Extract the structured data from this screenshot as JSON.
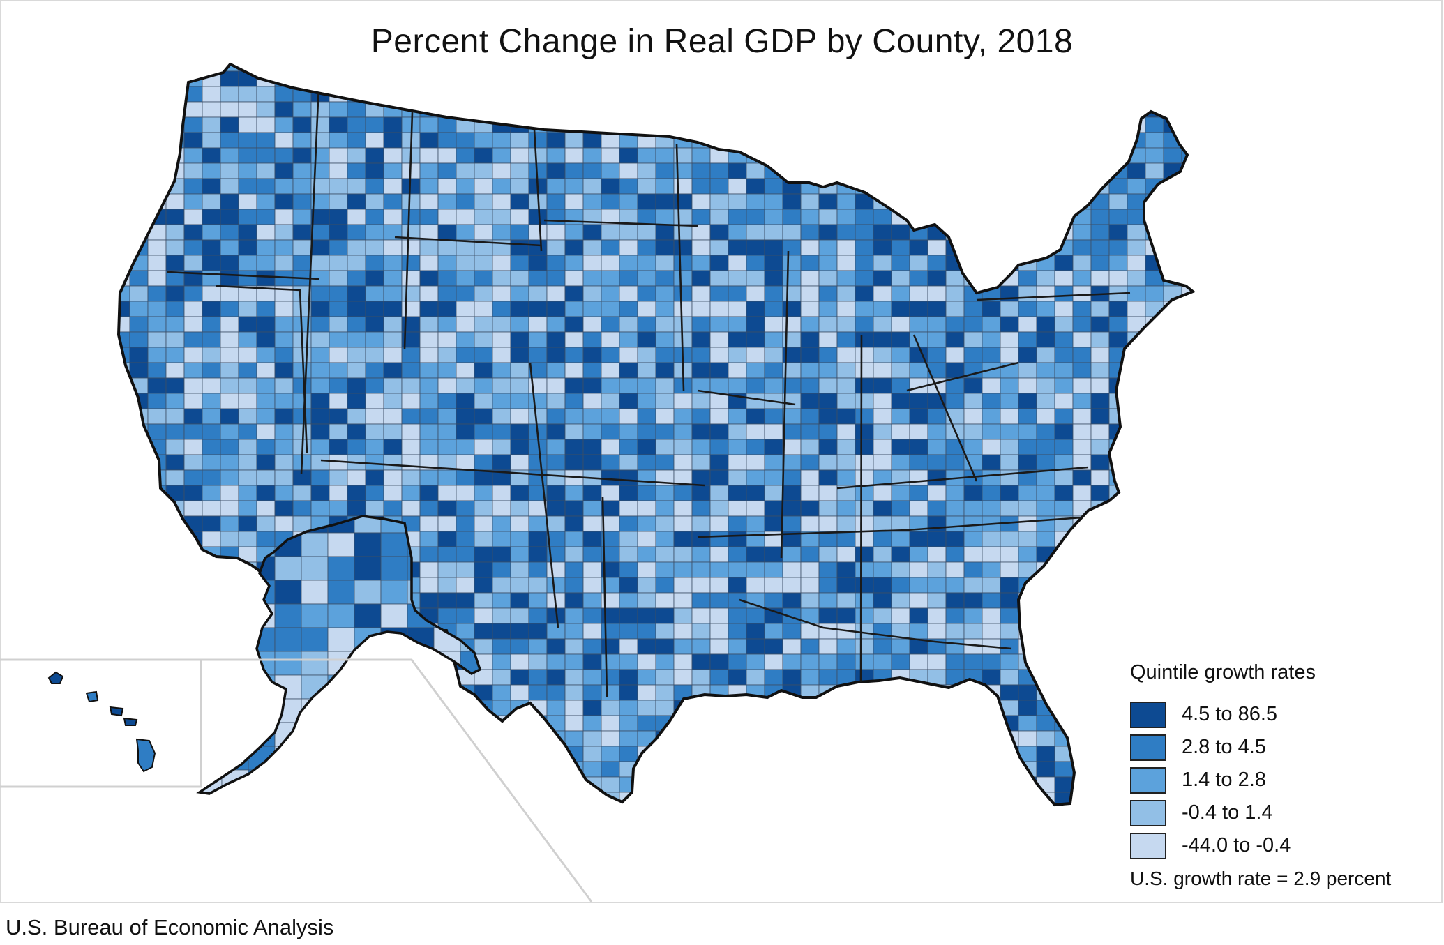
{
  "title": "Percent Change in Real GDP by County, 2018",
  "legend": {
    "title": "Quintile growth rates",
    "classes": [
      {
        "label": "4.5 to 86.5",
        "color": "#0d4a92"
      },
      {
        "label": "2.8 to 4.5",
        "color": "#2f7dc4"
      },
      {
        "label": "1.4 to 2.8",
        "color": "#5ca2dc"
      },
      {
        "label": "-0.4 to 1.4",
        "color": "#92bfe6"
      },
      {
        "label": "-44.0 to -0.4",
        "color": "#c6d9f0"
      }
    ],
    "us_rate": "U.S. growth rate = 2.9 percent"
  },
  "source": "U.S. Bureau of Economic Analysis",
  "map": {
    "regions": [
      "Contiguous United States",
      "Hawaii",
      "Alaska"
    ],
    "boundary_color": "#222222",
    "county_line_color": "#3c4e66"
  }
}
